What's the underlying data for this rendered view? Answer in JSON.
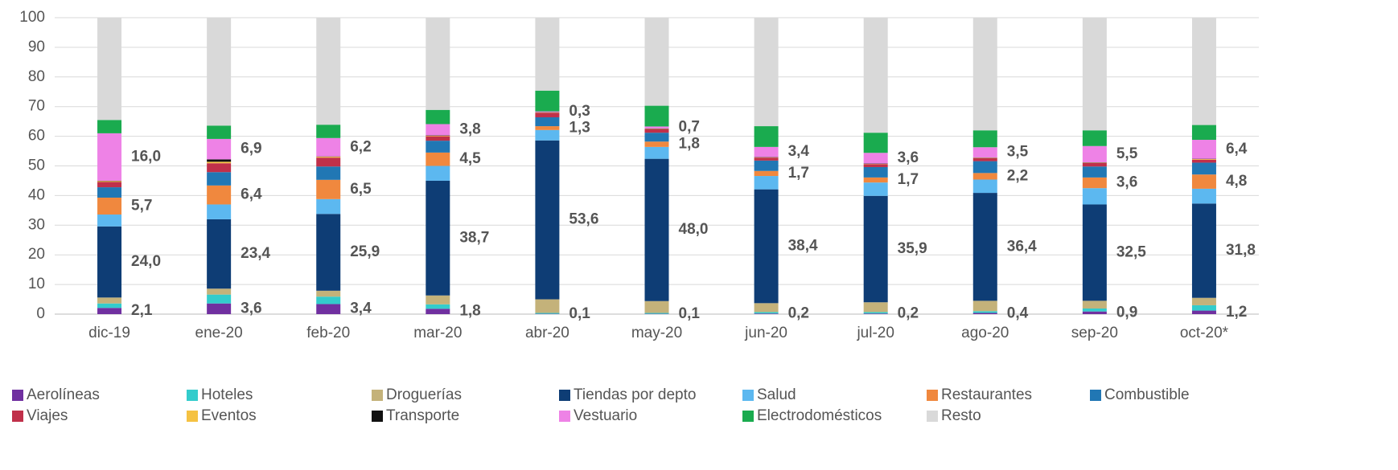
{
  "chart_data": {
    "type": "stacked_bar",
    "categories": [
      "dic-19",
      "ene-20",
      "feb-20",
      "mar-20",
      "abr-20",
      "may-20",
      "jun-20",
      "jul-20",
      "ago-20",
      "sep-20",
      "oct-20*"
    ],
    "ylim": [
      0,
      100
    ],
    "yticks": [
      0,
      10,
      20,
      30,
      40,
      50,
      60,
      70,
      80,
      90,
      100
    ],
    "grid": true,
    "series": [
      {
        "name": "Aerolíneas",
        "color": "#7030a0",
        "values": [
          2.1,
          3.6,
          3.4,
          1.8,
          0.1,
          0.1,
          0.2,
          0.2,
          0.4,
          0.9,
          1.2
        ],
        "value_labels": [
          "2,1",
          "3,6",
          "3,4",
          "1,8",
          "0,1",
          "0,1",
          "0,2",
          "0,2",
          "0,4",
          "0,9",
          "1,2"
        ]
      },
      {
        "name": "Hoteles",
        "color": "#33cccc",
        "values": [
          1.5,
          3,
          2.5,
          1.5,
          0.3,
          0.3,
          0.5,
          0.5,
          0.6,
          1,
          1.8
        ]
      },
      {
        "name": "Droguerías",
        "color": "#c4b27a",
        "values": [
          2,
          2,
          2,
          3,
          4.6,
          4,
          3,
          3.3,
          3.5,
          2.6,
          2.5
        ]
      },
      {
        "name": "Tiendas por depto",
        "color": "#0e3d75",
        "values": [
          24.0,
          23.4,
          25.9,
          38.7,
          53.6,
          48.0,
          38.4,
          35.9,
          36.4,
          32.5,
          31.8
        ],
        "value_labels": [
          "24,0",
          "23,4",
          "25,9",
          "38,7",
          "53,6",
          "48,0",
          "38,4",
          "35,9",
          "36,4",
          "32,5",
          "31,8"
        ]
      },
      {
        "name": "Salud",
        "color": "#5cb8f0",
        "values": [
          4,
          5,
          5,
          5,
          3.5,
          4,
          4.5,
          4.5,
          4.5,
          5.5,
          5
        ]
      },
      {
        "name": "Restaurantes",
        "color": "#f0883e",
        "values": [
          5.7,
          6.4,
          6.5,
          4.5,
          1.3,
          1.8,
          1.7,
          1.7,
          2.2,
          3.6,
          4.8
        ],
        "value_labels": [
          "5,7",
          "6,4",
          "6,5",
          "4,5",
          "1,3",
          "1,8",
          "1,7",
          "1,7",
          "2,2",
          "3,6",
          "4,8"
        ]
      },
      {
        "name": "Combustible",
        "color": "#2177b4",
        "values": [
          3.5,
          4.5,
          4.5,
          4,
          3,
          3,
          3.5,
          3.5,
          4,
          3.7,
          4
        ]
      },
      {
        "name": "Viajes",
        "color": "#c0304a",
        "values": [
          1.8,
          3,
          3,
          1.5,
          1.5,
          1.2,
          1,
          1,
          1,
          1.2,
          1
        ]
      },
      {
        "name": "Eventos",
        "color": "#f5c242",
        "values": [
          0.3,
          0.5,
          0.3,
          0.2,
          0.1,
          0.1,
          0.1,
          0.1,
          0.1,
          0.1,
          0.2
        ]
      },
      {
        "name": "Transporte",
        "color": "#111111",
        "values": [
          0.1,
          0.8,
          0.1,
          0.1,
          0.1,
          0.1,
          0.1,
          0.1,
          0.1,
          0.1,
          0.1
        ]
      },
      {
        "name": "Vestuario",
        "color": "#ee82e6",
        "values": [
          16.0,
          6.9,
          6.2,
          3.8,
          0.3,
          0.7,
          3.4,
          3.6,
          3.5,
          5.5,
          6.4
        ],
        "value_labels": [
          "16,0",
          "6,9",
          "6,2",
          "3,8",
          "0,3",
          "0,7",
          "3,4",
          "3,6",
          "3,5",
          "5,5",
          "6,4"
        ]
      },
      {
        "name": "Electrodomésticos",
        "color": "#1aab4f",
        "values": [
          4.5,
          4.5,
          4.5,
          4.8,
          7,
          7,
          7,
          6.8,
          5.7,
          5.3,
          5
        ]
      },
      {
        "name": "Resto",
        "color": "#d9d9d9",
        "values": [
          34.5,
          36.4,
          36.1,
          31.1,
          24.6,
          29.7,
          36.6,
          38.8,
          38.0,
          38.0,
          36.2
        ]
      }
    ]
  }
}
